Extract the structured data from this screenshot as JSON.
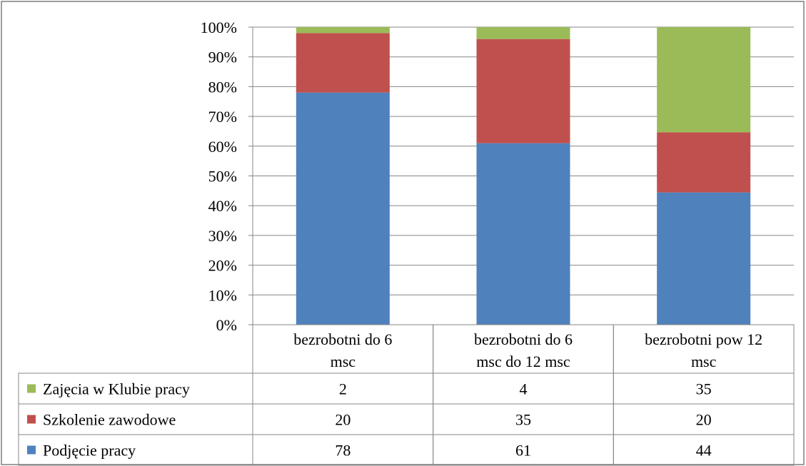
{
  "chart_data": {
    "type": "bar",
    "stacked": true,
    "percent": true,
    "categories": [
      [
        "bezrobotni do 6",
        "msc"
      ],
      [
        "bezrobotni do 6",
        "msc do 12 msc"
      ],
      [
        "bezrobotni pow 12",
        "msc"
      ]
    ],
    "series": [
      {
        "name": "Podjęcie pracy",
        "values": [
          78,
          61,
          44
        ],
        "color": "#4F81BD"
      },
      {
        "name": "Szkolenie zawodowe",
        "values": [
          20,
          35,
          20
        ],
        "color": "#C0504D"
      },
      {
        "name": "Zajęcia w Klubie pracy",
        "values": [
          2,
          4,
          35
        ],
        "color": "#9BBB59"
      }
    ],
    "yticks": [
      "0%",
      "10%",
      "20%",
      "30%",
      "40%",
      "50%",
      "60%",
      "70%",
      "80%",
      "90%",
      "100%"
    ],
    "ylim": [
      0,
      100
    ],
    "grid": true,
    "legend": "data-table",
    "table_row_order": [
      "Zajęcia w Klubie pracy",
      "Szkolenie zawodowe",
      "Podjęcie pracy"
    ]
  }
}
